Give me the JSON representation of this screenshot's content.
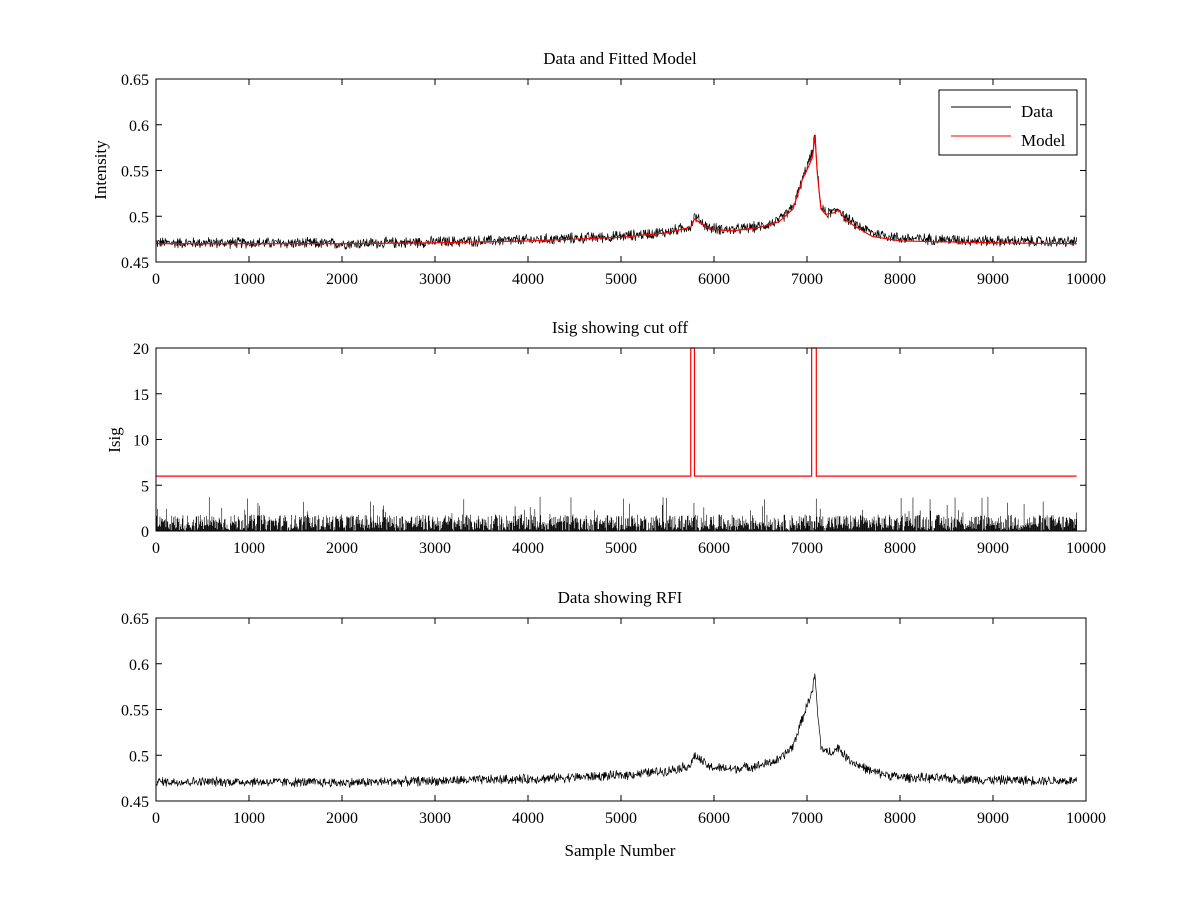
{
  "figure": {
    "background": "#ffffff"
  },
  "chart_data": [
    {
      "type": "line",
      "title": "Data and Fitted Model",
      "xlabel": "",
      "ylabel": "Intensity",
      "xlim": [
        0,
        10000
      ],
      "ylim": [
        0.45,
        0.65
      ],
      "xticks": [
        "0",
        "1000",
        "2000",
        "3000",
        "4000",
        "5000",
        "6000",
        "7000",
        "8000",
        "9000",
        "10000"
      ],
      "yticks": [
        "0.45",
        "0.5",
        "0.55",
        "0.6",
        "0.65"
      ],
      "legend": {
        "position": "top-right",
        "entries": [
          "Data",
          "Model"
        ]
      },
      "grid": false,
      "series": [
        {
          "name": "Data",
          "color": "#000000",
          "style": "noisy",
          "x_range": [
            0,
            9900
          ],
          "noise_amplitude": 0.007,
          "baseline": [
            [
              0,
              0.471
            ],
            [
              1000,
              0.471
            ],
            [
              2000,
              0.47
            ],
            [
              3000,
              0.472
            ],
            [
              4000,
              0.474
            ],
            [
              5000,
              0.478
            ],
            [
              5500,
              0.483
            ],
            [
              5750,
              0.489
            ],
            [
              5790,
              0.5
            ],
            [
              5850,
              0.495
            ],
            [
              5950,
              0.487
            ],
            [
              6200,
              0.485
            ],
            [
              6500,
              0.489
            ],
            [
              6700,
              0.495
            ],
            [
              6850,
              0.51
            ],
            [
              6950,
              0.54
            ],
            [
              7020,
              0.56
            ],
            [
              7060,
              0.57
            ],
            [
              7085,
              0.59
            ],
            [
              7110,
              0.55
            ],
            [
              7150,
              0.51
            ],
            [
              7200,
              0.503
            ],
            [
              7300,
              0.505
            ],
            [
              7340,
              0.509
            ],
            [
              7400,
              0.5
            ],
            [
              7500,
              0.492
            ],
            [
              7700,
              0.482
            ],
            [
              8000,
              0.476
            ],
            [
              9000,
              0.473
            ],
            [
              9900,
              0.472
            ]
          ]
        },
        {
          "name": "Model",
          "color": "#ff0000",
          "style": "smooth",
          "points": [
            [
              0,
              0.47
            ],
            [
              1000,
              0.47
            ],
            [
              2000,
              0.47
            ],
            [
              3000,
              0.471
            ],
            [
              4000,
              0.473
            ],
            [
              5000,
              0.477
            ],
            [
              5500,
              0.482
            ],
            [
              5750,
              0.488
            ],
            [
              5790,
              0.497
            ],
            [
              5850,
              0.493
            ],
            [
              5950,
              0.486
            ],
            [
              6200,
              0.484
            ],
            [
              6500,
              0.488
            ],
            [
              6700,
              0.494
            ],
            [
              6850,
              0.508
            ],
            [
              6950,
              0.54
            ],
            [
              7020,
              0.555
            ],
            [
              7060,
              0.565
            ],
            [
              7085,
              0.588
            ],
            [
              7110,
              0.548
            ],
            [
              7150,
              0.508
            ],
            [
              7200,
              0.502
            ],
            [
              7300,
              0.504
            ],
            [
              7340,
              0.507
            ],
            [
              7400,
              0.498
            ],
            [
              7500,
              0.49
            ],
            [
              7700,
              0.478
            ],
            [
              8000,
              0.473
            ],
            [
              9000,
              0.471
            ],
            [
              9900,
              0.47
            ]
          ]
        }
      ]
    },
    {
      "type": "line",
      "title": "Isig showing cut off",
      "xlabel": "",
      "ylabel": "Isig",
      "xlim": [
        0,
        10000
      ],
      "ylim": [
        0,
        20
      ],
      "xticks": [
        "0",
        "1000",
        "2000",
        "3000",
        "4000",
        "5000",
        "6000",
        "7000",
        "8000",
        "9000",
        "10000"
      ],
      "yticks": [
        "0",
        "5",
        "10",
        "15",
        "20"
      ],
      "grid": false,
      "series": [
        {
          "color": "#000000",
          "style": "noise-bars",
          "x_range": [
            0,
            9900
          ],
          "typical_max": 1.8,
          "peak_max": 3.8
        },
        {
          "color": "#ff0000",
          "style": "step",
          "points": [
            [
              0,
              6
            ],
            [
              5750,
              6
            ],
            [
              5750,
              20
            ],
            [
              5790,
              20
            ],
            [
              5790,
              6
            ],
            [
              7050,
              6
            ],
            [
              7050,
              20
            ],
            [
              7100,
              20
            ],
            [
              7100,
              6
            ],
            [
              9900,
              6
            ]
          ]
        }
      ]
    },
    {
      "type": "line",
      "title": "Data showing RFI",
      "xlabel": "Sample Number",
      "ylabel": "",
      "xlim": [
        0,
        10000
      ],
      "ylim": [
        0.45,
        0.65
      ],
      "xticks": [
        "0",
        "1000",
        "2000",
        "3000",
        "4000",
        "5000",
        "6000",
        "7000",
        "8000",
        "9000",
        "10000"
      ],
      "yticks": [
        "0.45",
        "0.5",
        "0.55",
        "0.6",
        "0.65"
      ],
      "grid": false,
      "series": [
        {
          "color": "#000000",
          "style": "noisy",
          "x_range": [
            0,
            9900
          ],
          "noise_amplitude": 0.006,
          "baseline": [
            [
              0,
              0.471
            ],
            [
              1000,
              0.471
            ],
            [
              2000,
              0.47
            ],
            [
              3000,
              0.472
            ],
            [
              4000,
              0.474
            ],
            [
              5000,
              0.478
            ],
            [
              5500,
              0.483
            ],
            [
              5750,
              0.489
            ],
            [
              5790,
              0.5
            ],
            [
              5850,
              0.495
            ],
            [
              5950,
              0.487
            ],
            [
              6200,
              0.485
            ],
            [
              6500,
              0.489
            ],
            [
              6700,
              0.495
            ],
            [
              6850,
              0.51
            ],
            [
              6950,
              0.54
            ],
            [
              7020,
              0.56
            ],
            [
              7060,
              0.57
            ],
            [
              7085,
              0.59
            ],
            [
              7110,
              0.55
            ],
            [
              7150,
              0.51
            ],
            [
              7200,
              0.503
            ],
            [
              7300,
              0.505
            ],
            [
              7340,
              0.509
            ],
            [
              7400,
              0.5
            ],
            [
              7500,
              0.492
            ],
            [
              7700,
              0.482
            ],
            [
              8000,
              0.476
            ],
            [
              9000,
              0.473
            ],
            [
              9900,
              0.472
            ]
          ]
        }
      ]
    }
  ]
}
